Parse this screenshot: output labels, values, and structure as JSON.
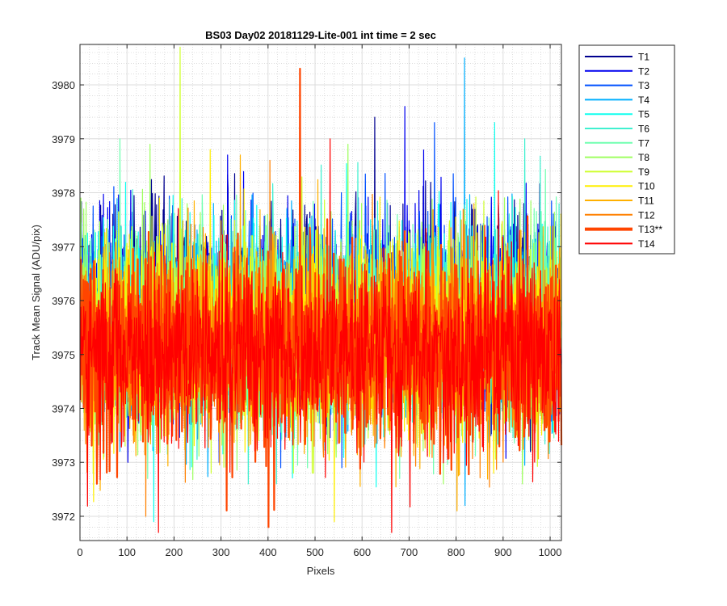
{
  "chart_data": {
    "type": "line",
    "title": "BS03 Day02 20181129-Lite-001 int time = 2 sec",
    "xlabel": "Pixels",
    "ylabel": "Track Mean Signal (ADU/pix)",
    "xlim": [
      0,
      1024
    ],
    "ylim": [
      3971.55,
      3980.75
    ],
    "x_ticks": [
      0,
      100,
      200,
      300,
      400,
      500,
      600,
      700,
      800,
      900,
      1000
    ],
    "x_tick_labels": [
      "0",
      "100",
      "200",
      "300",
      "400",
      "500",
      "600",
      "700",
      "800",
      "900",
      "1000"
    ],
    "y_ticks": [
      3972,
      3973,
      3974,
      3975,
      3976,
      3977,
      3978,
      3979,
      3980
    ],
    "y_tick_labels": [
      "3972",
      "3973",
      "3974",
      "3975",
      "3976",
      "3977",
      "3978",
      "3979",
      "3980"
    ],
    "grid": true,
    "minor_grid": true,
    "legend_position": "outside-top-right",
    "x_points": 1024,
    "series": [
      {
        "name": "T1",
        "color": "#00008F",
        "mean": 3975.9,
        "min": 3973.2,
        "max": 3979.4,
        "bold": false
      },
      {
        "name": "T2",
        "color": "#0000EF",
        "mean": 3975.8,
        "min": 3973.0,
        "max": 3979.6,
        "bold": false
      },
      {
        "name": "T3",
        "color": "#0050FF",
        "mean": 3975.7,
        "min": 3972.9,
        "max": 3979.3,
        "bold": false
      },
      {
        "name": "T4",
        "color": "#00AFFF",
        "mean": 3975.6,
        "min": 3972.2,
        "max": 3980.5,
        "bold": false
      },
      {
        "name": "T5",
        "color": "#10FFEF",
        "mean": 3975.6,
        "min": 3971.9,
        "max": 3979.3,
        "bold": false
      },
      {
        "name": "T6",
        "color": "#40F0D0",
        "mean": 3975.5,
        "min": 3972.6,
        "max": 3979.0,
        "bold": false
      },
      {
        "name": "T7",
        "color": "#70FFB0",
        "mean": 3975.5,
        "min": 3972.7,
        "max": 3979.0,
        "bold": false
      },
      {
        "name": "T8",
        "color": "#9FFF60",
        "mean": 3975.4,
        "min": 3972.6,
        "max": 3978.9,
        "bold": false
      },
      {
        "name": "T9",
        "color": "#CFFF30",
        "mean": 3975.4,
        "min": 3972.8,
        "max": 3980.7,
        "bold": false
      },
      {
        "name": "T10",
        "color": "#FFEF00",
        "mean": 3975.3,
        "min": 3971.9,
        "max": 3978.8,
        "bold": false
      },
      {
        "name": "T11",
        "color": "#FFB000",
        "mean": 3975.2,
        "min": 3972.1,
        "max": 3978.7,
        "bold": false
      },
      {
        "name": "T12",
        "color": "#FF8000",
        "mean": 3975.1,
        "min": 3972.0,
        "max": 3978.6,
        "bold": false
      },
      {
        "name": "T13**",
        "color": "#FF4500",
        "mean": 3975.1,
        "min": 3971.8,
        "max": 3980.3,
        "bold": true
      },
      {
        "name": "T14",
        "color": "#FF0000",
        "mean": 3975.0,
        "min": 3971.7,
        "max": 3979.0,
        "bold": false
      }
    ]
  }
}
